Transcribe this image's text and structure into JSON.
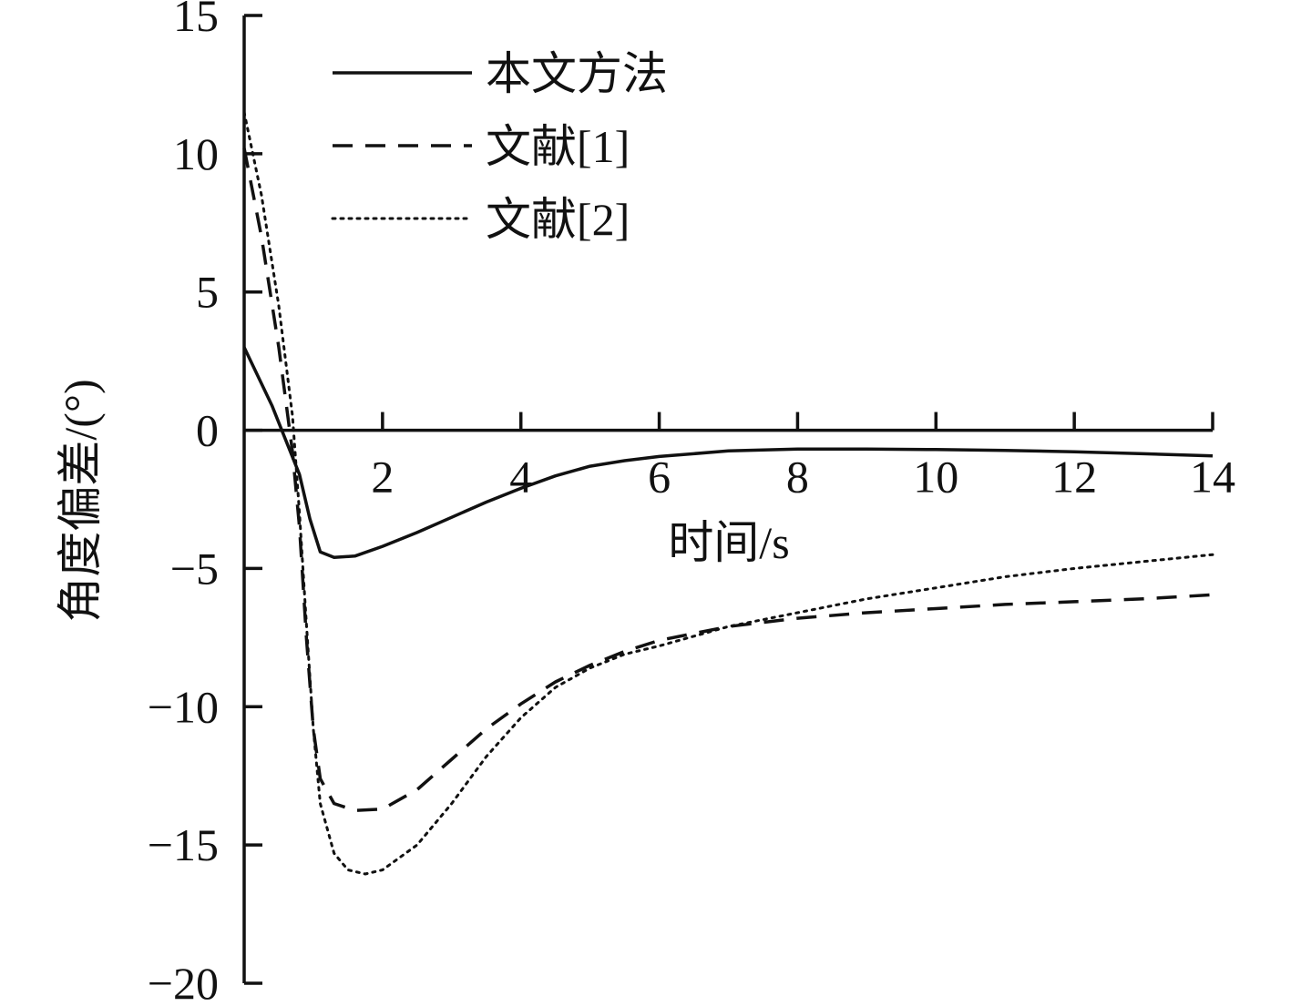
{
  "chart_data": {
    "type": "line",
    "title": "",
    "xlabel": "时间/s",
    "ylabel": "角度偏差/(°)",
    "xlim": [
      0,
      14
    ],
    "ylim": [
      -20,
      15
    ],
    "xticks": [
      2,
      4,
      6,
      8,
      10,
      12,
      14
    ],
    "yticks": [
      15,
      10,
      5,
      0,
      -5,
      -10,
      -15,
      -20
    ],
    "xtick_labels": [
      "2",
      "4",
      "6",
      "8",
      "10",
      "12",
      "14"
    ],
    "ytick_labels": [
      "15",
      "10",
      "5",
      "0",
      "−5",
      "−10",
      "−15",
      "−20"
    ],
    "grid": false,
    "legend_position": "top-left",
    "series": [
      {
        "name": "本文方法",
        "style": "solid",
        "color": "#111111",
        "x": [
          0,
          0.4,
          0.8,
          0.95,
          1.1,
          1.3,
          1.6,
          2,
          2.5,
          3,
          3.5,
          4,
          4.5,
          5,
          5.5,
          6,
          7,
          8,
          9,
          10,
          11,
          12,
          13,
          14
        ],
        "y": [
          3.0,
          0.9,
          -1.6,
          -3.2,
          -4.4,
          -4.6,
          -4.55,
          -4.2,
          -3.7,
          -3.15,
          -2.6,
          -2.1,
          -1.65,
          -1.3,
          -1.1,
          -0.95,
          -0.75,
          -0.68,
          -0.68,
          -0.7,
          -0.73,
          -0.78,
          -0.85,
          -0.93
        ]
      },
      {
        "name": "文献[1]",
        "style": "dashed",
        "color": "#111111",
        "x": [
          0,
          0.25,
          0.5,
          0.7,
          0.8,
          0.9,
          1.0,
          1.1,
          1.3,
          1.6,
          2.0,
          2.5,
          3.0,
          3.5,
          4.0,
          4.5,
          5.0,
          5.5,
          6.0,
          7.0,
          8.0,
          9.0,
          10.0,
          11.0,
          12.0,
          13.0,
          14.0
        ],
        "y": [
          10.2,
          7.0,
          3.0,
          -0.8,
          -3.5,
          -7.5,
          -10.8,
          -12.6,
          -13.5,
          -13.75,
          -13.7,
          -13.0,
          -11.9,
          -10.8,
          -9.9,
          -9.1,
          -8.5,
          -8.0,
          -7.6,
          -7.1,
          -6.8,
          -6.6,
          -6.45,
          -6.3,
          -6.2,
          -6.1,
          -5.95
        ]
      },
      {
        "name": "文献[2]",
        "style": "dotted",
        "color": "#111111",
        "x": [
          0,
          0.25,
          0.5,
          0.7,
          0.8,
          0.9,
          1.0,
          1.1,
          1.3,
          1.5,
          1.75,
          2.0,
          2.5,
          3.0,
          3.5,
          4.0,
          4.5,
          5.0,
          5.5,
          6.0,
          7.0,
          8.0,
          9.0,
          10.0,
          11.0,
          12.0,
          13.0,
          14.0
        ],
        "y": [
          11.5,
          8.5,
          4.5,
          0.5,
          -3.0,
          -7.0,
          -10.8,
          -13.5,
          -15.3,
          -15.9,
          -16.05,
          -15.9,
          -15.0,
          -13.5,
          -11.8,
          -10.4,
          -9.3,
          -8.6,
          -8.1,
          -7.8,
          -7.1,
          -6.6,
          -6.1,
          -5.7,
          -5.3,
          -5.0,
          -4.75,
          -4.5
        ]
      }
    ]
  }
}
